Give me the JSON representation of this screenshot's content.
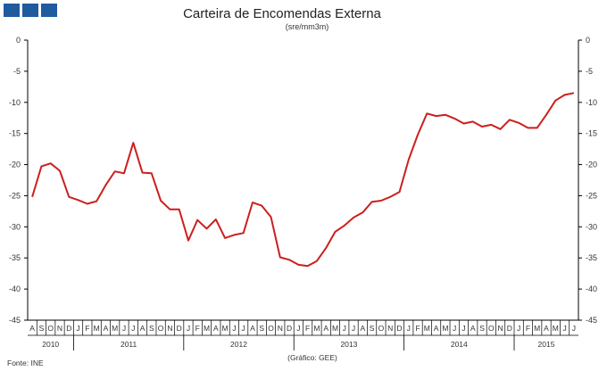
{
  "logo": {
    "icon": "logo-squares-icon",
    "color": "#1f5b9e"
  },
  "chart_data": {
    "type": "line",
    "title": "Carteira de Encomendas Externa",
    "subtitle": "(sre/mm3m)",
    "source": "Fonte: INE",
    "credit": "(Gráfico: GEE)",
    "ylim": [
      -45,
      0
    ],
    "yticks": [
      0,
      -5,
      -10,
      -15,
      -20,
      -25,
      -30,
      -35,
      -40,
      -45
    ],
    "grid": false,
    "line_color": "#cc1f1f",
    "months": [
      "A",
      "S",
      "O",
      "N",
      "D",
      "J",
      "F",
      "M",
      "A",
      "M",
      "J",
      "J",
      "A",
      "S",
      "O",
      "N",
      "D",
      "J",
      "F",
      "M",
      "A",
      "M",
      "J",
      "J",
      "A",
      "S",
      "O",
      "N",
      "D",
      "J",
      "F",
      "M",
      "A",
      "M",
      "J",
      "J",
      "A",
      "S",
      "O",
      "N",
      "D",
      "J",
      "F",
      "M",
      "A",
      "M",
      "J",
      "J",
      "A",
      "S",
      "O",
      "N",
      "D",
      "J",
      "F",
      "M",
      "A",
      "M",
      "J",
      "J"
    ],
    "years": [
      {
        "label": "2010",
        "start": 0,
        "end": 5
      },
      {
        "label": "2011",
        "start": 5,
        "end": 17
      },
      {
        "label": "2012",
        "start": 17,
        "end": 29
      },
      {
        "label": "2013",
        "start": 29,
        "end": 41
      },
      {
        "label": "2014",
        "start": 41,
        "end": 53
      },
      {
        "label": "2015",
        "start": 53,
        "end": 60
      }
    ],
    "series": [
      {
        "values": [
          -25.2,
          -20.3,
          -19.8,
          -21.0,
          -25.2,
          -25.7,
          -26.3,
          -25.9,
          -23.3,
          -21.1,
          -21.4,
          -16.5,
          -21.3,
          -21.4,
          -25.8,
          -27.2,
          -27.2,
          -32.2,
          -28.9,
          -30.3,
          -28.8,
          -31.8,
          -31.3,
          -31.0,
          -26.1,
          -26.6,
          -28.4,
          -34.9,
          -35.3,
          -36.1,
          -36.3,
          -35.5,
          -33.4,
          -30.8,
          -29.8,
          -28.5,
          -27.7,
          -26.0,
          -25.8,
          -25.2,
          -24.4,
          -19.2,
          -15.2,
          -11.8,
          -12.2,
          -12.0,
          -12.6,
          -13.4,
          -13.1,
          -13.9,
          -13.6,
          -14.3,
          -12.8,
          -13.3,
          -14.1,
          -14.1,
          -12.0,
          -9.7,
          -8.8,
          -8.5
        ]
      }
    ]
  }
}
